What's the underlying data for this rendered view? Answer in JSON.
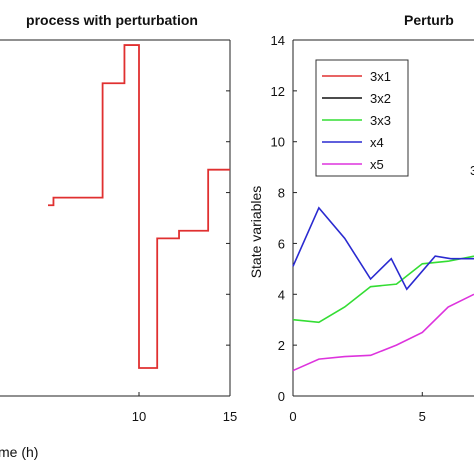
{
  "chart_data": [
    {
      "type": "line",
      "title": "process with perturbation",
      "xlabel": "me (h)",
      "ylabel": "",
      "xlim": [
        5,
        15
      ],
      "ylim": [
        0,
        14
      ],
      "xticks": [
        10,
        15
      ],
      "xtick_labels": [
        "10",
        "15"
      ],
      "grid": false,
      "series": [
        {
          "color": "#e03030",
          "step": true,
          "x": [
            5,
            5.3,
            5.3,
            8,
            8,
            9.2,
            9.2,
            10,
            10,
            11,
            11,
            12.2,
            12.2,
            13.8,
            13.8,
            15
          ],
          "y": [
            7.5,
            7.5,
            7.8,
            7.8,
            12.3,
            12.3,
            13.8,
            13.8,
            1.1,
            1.1,
            6.2,
            6.2,
            6.5,
            6.5,
            8.9,
            8.9
          ]
        }
      ]
    },
    {
      "type": "line",
      "title": "Perturb",
      "xlabel": "",
      "ylabel": "State variables",
      "xlim": [
        0,
        7
      ],
      "ylim": [
        0,
        14
      ],
      "xticks": [
        0,
        5
      ],
      "xtick_labels": [
        "0",
        "5"
      ],
      "yticks": [
        0,
        2,
        4,
        6,
        8,
        10,
        12,
        14
      ],
      "ytick_labels": [
        "0",
        "2",
        "4",
        "6",
        "8",
        "10",
        "12",
        "14"
      ],
      "grid": false,
      "legend_position": "top-left",
      "annotation": "3",
      "series": [
        {
          "name": "3x1",
          "color": "#e03030",
          "x": [],
          "y": []
        },
        {
          "name": "3x2",
          "color": "#111111",
          "x": [],
          "y": []
        },
        {
          "name": "3x3",
          "color": "#33dd33",
          "x": [
            0,
            1,
            2,
            3,
            4,
            5,
            6,
            7
          ],
          "y": [
            3.0,
            2.9,
            3.5,
            4.3,
            4.4,
            5.2,
            5.3,
            5.5
          ]
        },
        {
          "name": "x4",
          "color": "#2a2ad0",
          "x": [
            0,
            1,
            2,
            3,
            3.8,
            4.4,
            5.5,
            6.1,
            6.8,
            7
          ],
          "y": [
            5.1,
            7.4,
            6.2,
            4.6,
            5.4,
            4.2,
            5.5,
            5.4,
            5.4,
            5.4
          ]
        },
        {
          "name": "x5",
          "color": "#dd33dd",
          "x": [
            0,
            1,
            2,
            3,
            4,
            5,
            6,
            7
          ],
          "y": [
            1.0,
            1.45,
            1.55,
            1.6,
            2.0,
            2.5,
            3.5,
            4.0
          ]
        }
      ]
    }
  ]
}
